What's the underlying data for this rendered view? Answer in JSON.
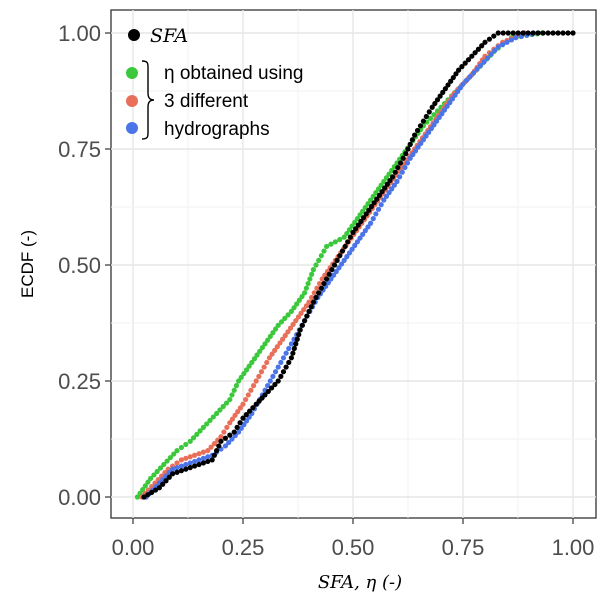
{
  "chart_data": {
    "type": "scatter",
    "ylabel": "ECDF (-)",
    "xlabel": "SFA, η (-)",
    "xlim": [
      0,
      1.0
    ],
    "ylim": [
      0,
      1.0
    ],
    "x_ticks": [
      "0.00",
      "0.25",
      "0.50",
      "0.75",
      "1.00"
    ],
    "y_ticks": [
      "0.00",
      "0.25",
      "0.50",
      "0.75",
      "1.00"
    ],
    "grid": true,
    "legend_position": "top-left",
    "legend": {
      "sfa_label": "SFA",
      "eta_lines": [
        "η obtained using",
        "3 different",
        "hydrographs"
      ]
    },
    "series": [
      {
        "name": "SFA",
        "color": "#000000",
        "points": [
          [
            0.025,
            0.0
          ],
          [
            0.06,
            0.02
          ],
          [
            0.09,
            0.05
          ],
          [
            0.12,
            0.06
          ],
          [
            0.15,
            0.07
          ],
          [
            0.18,
            0.08
          ],
          [
            0.2,
            0.12
          ],
          [
            0.23,
            0.14
          ],
          [
            0.25,
            0.17
          ],
          [
            0.28,
            0.2
          ],
          [
            0.3,
            0.22
          ],
          [
            0.33,
            0.25
          ],
          [
            0.36,
            0.3
          ],
          [
            0.38,
            0.36
          ],
          [
            0.41,
            0.42
          ],
          [
            0.44,
            0.47
          ],
          [
            0.47,
            0.52
          ],
          [
            0.5,
            0.57
          ],
          [
            0.53,
            0.61
          ],
          [
            0.56,
            0.65
          ],
          [
            0.59,
            0.69
          ],
          [
            0.62,
            0.74
          ],
          [
            0.64,
            0.78
          ],
          [
            0.66,
            0.81
          ],
          [
            0.68,
            0.84
          ],
          [
            0.71,
            0.88
          ],
          [
            0.74,
            0.92
          ],
          [
            0.77,
            0.95
          ],
          [
            0.8,
            0.98
          ],
          [
            0.83,
            1.0
          ],
          [
            1.0,
            1.0
          ]
        ]
      },
      {
        "name": "",
        "color": "#3cc83c",
        "points": [
          [
            0.01,
            0.0
          ],
          [
            0.04,
            0.04
          ],
          [
            0.07,
            0.07
          ],
          [
            0.1,
            0.1
          ],
          [
            0.13,
            0.12
          ],
          [
            0.16,
            0.15
          ],
          [
            0.19,
            0.18
          ],
          [
            0.22,
            0.21
          ],
          [
            0.24,
            0.25
          ],
          [
            0.27,
            0.29
          ],
          [
            0.3,
            0.33
          ],
          [
            0.33,
            0.37
          ],
          [
            0.36,
            0.4
          ],
          [
            0.39,
            0.44
          ],
          [
            0.41,
            0.49
          ],
          [
            0.44,
            0.54
          ],
          [
            0.48,
            0.56
          ],
          [
            0.51,
            0.6
          ],
          [
            0.54,
            0.64
          ],
          [
            0.57,
            0.68
          ],
          [
            0.6,
            0.72
          ],
          [
            0.63,
            0.76
          ],
          [
            0.66,
            0.8
          ],
          [
            0.7,
            0.84
          ],
          [
            0.74,
            0.88
          ],
          [
            0.78,
            0.92
          ],
          [
            0.82,
            0.96
          ],
          [
            0.86,
            0.99
          ],
          [
            0.93,
            1.0
          ]
        ]
      },
      {
        "name": "",
        "color": "#e8705a",
        "points": [
          [
            0.02,
            0.0
          ],
          [
            0.05,
            0.03
          ],
          [
            0.08,
            0.06
          ],
          [
            0.11,
            0.08
          ],
          [
            0.14,
            0.09
          ],
          [
            0.17,
            0.1
          ],
          [
            0.2,
            0.13
          ],
          [
            0.22,
            0.16
          ],
          [
            0.25,
            0.2
          ],
          [
            0.28,
            0.25
          ],
          [
            0.31,
            0.3
          ],
          [
            0.34,
            0.34
          ],
          [
            0.37,
            0.38
          ],
          [
            0.4,
            0.42
          ],
          [
            0.43,
            0.47
          ],
          [
            0.46,
            0.51
          ],
          [
            0.49,
            0.55
          ],
          [
            0.52,
            0.59
          ],
          [
            0.55,
            0.63
          ],
          [
            0.58,
            0.67
          ],
          [
            0.61,
            0.71
          ],
          [
            0.64,
            0.75
          ],
          [
            0.67,
            0.79
          ],
          [
            0.7,
            0.83
          ],
          [
            0.73,
            0.87
          ],
          [
            0.77,
            0.91
          ],
          [
            0.8,
            0.95
          ],
          [
            0.84,
            0.98
          ],
          [
            0.89,
            1.0
          ]
        ]
      },
      {
        "name": "",
        "color": "#4a74e8",
        "points": [
          [
            0.03,
            0.0
          ],
          [
            0.06,
            0.03
          ],
          [
            0.09,
            0.06
          ],
          [
            0.12,
            0.07
          ],
          [
            0.15,
            0.08
          ],
          [
            0.18,
            0.09
          ],
          [
            0.21,
            0.11
          ],
          [
            0.24,
            0.14
          ],
          [
            0.27,
            0.18
          ],
          [
            0.3,
            0.23
          ],
          [
            0.33,
            0.28
          ],
          [
            0.36,
            0.33
          ],
          [
            0.39,
            0.38
          ],
          [
            0.42,
            0.43
          ],
          [
            0.45,
            0.47
          ],
          [
            0.48,
            0.51
          ],
          [
            0.51,
            0.55
          ],
          [
            0.54,
            0.59
          ],
          [
            0.57,
            0.64
          ],
          [
            0.6,
            0.68
          ],
          [
            0.63,
            0.73
          ],
          [
            0.66,
            0.77
          ],
          [
            0.69,
            0.81
          ],
          [
            0.72,
            0.85
          ],
          [
            0.75,
            0.89
          ],
          [
            0.79,
            0.93
          ],
          [
            0.83,
            0.97
          ],
          [
            0.87,
            0.99
          ],
          [
            0.92,
            1.0
          ]
        ]
      }
    ]
  }
}
